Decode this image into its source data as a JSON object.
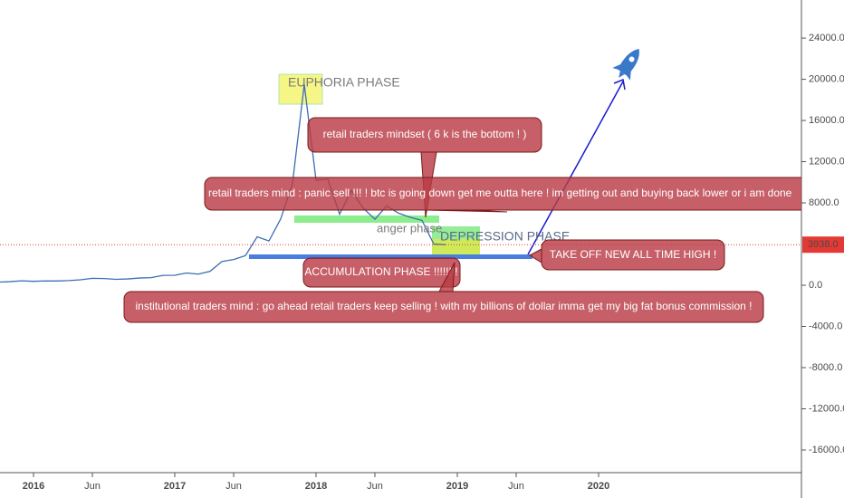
{
  "chart_data": {
    "type": "line",
    "x": [
      "2015-10",
      "2015-11",
      "2015-12",
      "2016-01",
      "2016-02",
      "2016-03",
      "2016-04",
      "2016-05",
      "2016-06",
      "2016-07",
      "2016-08",
      "2016-09",
      "2016-10",
      "2016-11",
      "2016-12",
      "2017-01",
      "2017-02",
      "2017-03",
      "2017-04",
      "2017-05",
      "2017-06",
      "2017-07",
      "2017-08",
      "2017-09",
      "2017-10",
      "2017-11",
      "2017-12",
      "2018-01",
      "2018-02",
      "2018-03",
      "2018-04",
      "2018-05",
      "2018-06",
      "2018-07",
      "2018-08",
      "2018-09",
      "2018-10",
      "2018-11",
      "2018-12"
    ],
    "series": [
      {
        "color": "#3b6db3",
        "values": [
          300,
          350,
          430,
          380,
          420,
          415,
          450,
          530,
          670,
          650,
          575,
          610,
          700,
          740,
          960,
          970,
          1190,
          1080,
          1350,
          2300,
          2500,
          2870,
          4700,
          4300,
          6450,
          9900,
          19500,
          10200,
          10300,
          6900,
          9200,
          7500,
          6400,
          7700,
          7000,
          6600,
          6300,
          4000,
          3938
        ]
      }
    ],
    "xticks": [
      {
        "value": "2016-01",
        "label": "2016"
      },
      {
        "value": "2016-06",
        "label": "Jun"
      },
      {
        "value": "2017-01",
        "label": "2017"
      },
      {
        "value": "2017-06",
        "label": "Jun"
      },
      {
        "value": "2018-01",
        "label": "2018"
      },
      {
        "value": "2018-06",
        "label": "Jun"
      },
      {
        "value": "2019-01",
        "label": "2019"
      },
      {
        "value": "2019-06",
        "label": "Jun"
      },
      {
        "value": "2020-01",
        "label": "2020"
      }
    ],
    "ylim": [
      -18200,
      27700
    ],
    "yticks": [
      {
        "value": 24000,
        "label": "24000.0"
      },
      {
        "value": 20000,
        "label": "20000.0"
      },
      {
        "value": 16000,
        "label": "16000.0"
      },
      {
        "value": 12000,
        "label": "12000.0"
      },
      {
        "value": 8000,
        "label": "8000.0"
      },
      {
        "value": 0,
        "label": "0.0"
      },
      {
        "value": -4000,
        "label": "-4000.0"
      },
      {
        "value": -8000,
        "label": "-8000.0"
      },
      {
        "value": -12000,
        "label": "-12000.0"
      },
      {
        "value": -16000,
        "label": "-16000.0"
      }
    ],
    "last_price": {
      "value": 3938,
      "label": "3938.0",
      "color": "#e53935"
    },
    "annotations": [
      {
        "text": "EUPHORIA PHASE"
      },
      {
        "text": "retail traders mindset ( 6 k is the bottom ! )"
      },
      {
        "text": "retail traders mind : panic sell !!! !  btc is going down get me outta here ! im getting out and buying back lower or i am done"
      },
      {
        "text": "anger phase"
      },
      {
        "text": "DEPRESSION PHASE"
      },
      {
        "text": "TAKE OFF NEW ALL TIME HIGH  !"
      },
      {
        "text": "ACCUMULATION PHASE !!!!!!!!"
      },
      {
        "text": "institutional traders mind : go ahead retail traders  keep selling ! with my billions of dollar imma get my big fat bonus commission !"
      }
    ]
  }
}
